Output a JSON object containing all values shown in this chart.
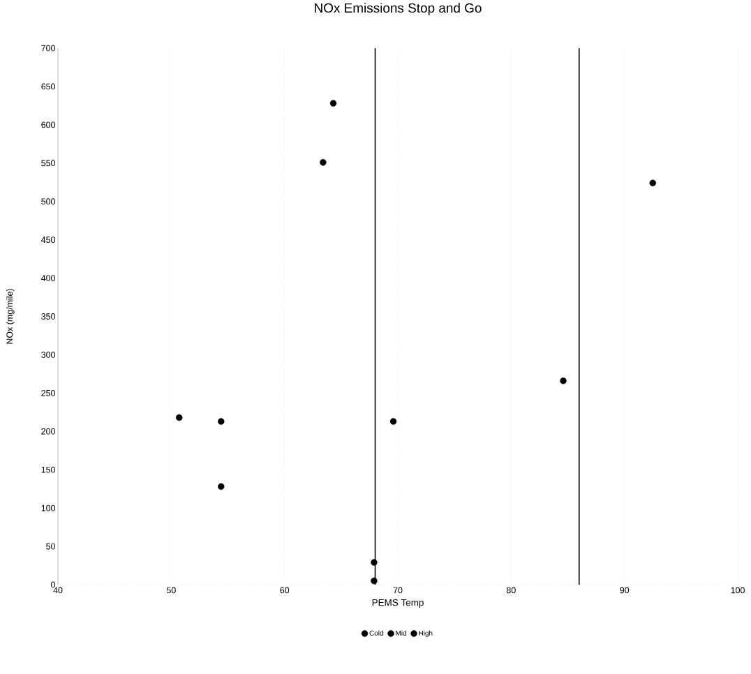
{
  "chart_data": {
    "type": "scatter",
    "title": "NOx Emissions  Stop and Go",
    "xlabel": "PEMS Temp",
    "ylabel": "NOx (mg/mile)",
    "xlim": [
      40,
      100
    ],
    "xticks": [
      40,
      50,
      60,
      70,
      80,
      90,
      100
    ],
    "ylim": [
      0,
      700
    ],
    "yticks": [
      0,
      50,
      100,
      150,
      200,
      250,
      300,
      350,
      400,
      450,
      500,
      550,
      600,
      650,
      700
    ],
    "grid": "x",
    "legend": "bottom",
    "marker": "circle",
    "series": [
      {
        "name": "Cold",
        "color": "#000000",
        "x": [
          50.7,
          54.4,
          54.4,
          63.4,
          64.3,
          67.9,
          67.9
        ],
        "values": [
          218,
          213,
          128,
          551,
          628,
          5,
          29
        ]
      },
      {
        "name": "Mid",
        "color": "#000000",
        "x": [
          69.6,
          84.6
        ],
        "values": [
          213,
          266
        ]
      },
      {
        "name": "High",
        "color": "#000000",
        "x": [
          92.5
        ],
        "values": [
          524
        ]
      }
    ],
    "ref_lines": [
      {
        "axis": "x",
        "value": 68,
        "color": "#000000"
      },
      {
        "axis": "x",
        "value": 86,
        "color": "#000000"
      }
    ]
  }
}
